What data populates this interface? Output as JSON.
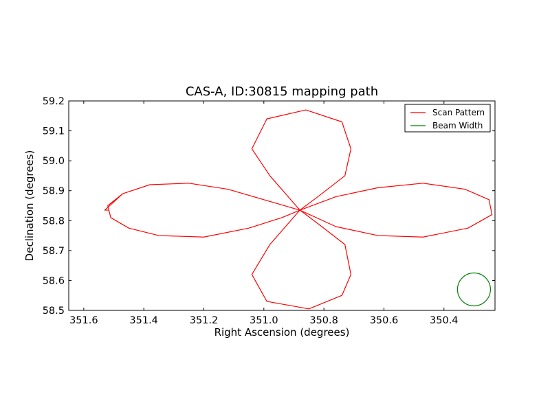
{
  "chart_data": {
    "type": "line",
    "title": "CAS-A, ID:30815 mapping path",
    "xlabel": "Right Ascension (degrees)",
    "ylabel": "Declination (degrees)",
    "xlim": [
      351.65,
      350.23
    ],
    "ylim": [
      58.5,
      59.2
    ],
    "x_ticks": [
      351.6,
      351.4,
      351.2,
      351.0,
      350.8,
      350.6,
      350.4
    ],
    "x_tick_labels": [
      "351.6",
      "351.4",
      "351.2",
      "351.0",
      "350.8",
      "350.6",
      "350.4"
    ],
    "y_ticks": [
      58.5,
      58.6,
      58.7,
      58.8,
      58.9,
      59.0,
      59.1,
      59.2
    ],
    "y_tick_labels": [
      "58.5",
      "58.6",
      "58.7",
      "58.8",
      "58.9",
      "59.0",
      "59.1",
      "59.2"
    ],
    "grid": false,
    "legend_position": "top-right",
    "center": [
      350.88,
      58.835
    ],
    "series": [
      {
        "name": "Scan Pattern",
        "color": "#ff0000",
        "x": [
          350.88,
          351.0,
          351.12,
          351.25,
          351.38,
          351.47,
          351.52,
          351.51,
          351.45,
          351.35,
          351.2,
          351.05,
          350.94,
          350.88,
          350.82,
          350.73,
          350.71,
          350.74,
          350.85,
          350.99,
          351.04,
          350.98,
          350.88,
          350.76,
          350.62,
          350.47,
          350.33,
          350.25,
          350.24,
          350.32,
          350.47,
          350.62,
          350.76,
          350.88,
          350.82,
          350.73,
          350.71,
          350.74,
          350.86,
          350.99,
          351.04,
          350.98,
          350.88,
          351.0,
          351.12,
          351.25,
          351.38,
          351.47,
          351.53,
          351.515
        ],
        "y": [
          58.835,
          58.87,
          58.905,
          58.925,
          58.92,
          58.89,
          58.85,
          58.81,
          58.775,
          58.75,
          58.745,
          58.775,
          58.81,
          58.835,
          58.79,
          58.72,
          58.62,
          58.55,
          58.505,
          58.53,
          58.62,
          58.72,
          58.835,
          58.88,
          58.91,
          58.925,
          58.905,
          58.87,
          58.82,
          58.775,
          58.745,
          58.75,
          58.78,
          58.835,
          58.88,
          58.95,
          59.04,
          59.13,
          59.17,
          59.14,
          59.04,
          58.95,
          58.835,
          58.87,
          58.905,
          58.925,
          58.92,
          58.89,
          58.835,
          58.835
        ]
      },
      {
        "name": "Beam Width",
        "color": "#008000",
        "shape": "circle",
        "center": [
          350.3,
          58.57
        ],
        "radius_deg": 0.055
      }
    ]
  }
}
